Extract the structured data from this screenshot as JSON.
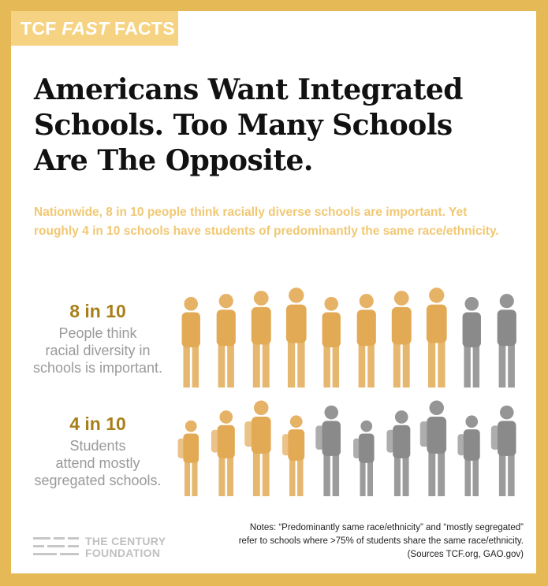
{
  "tag": {
    "prefix": "TCF",
    "emphasis": "FAST",
    "suffix": "FACTS"
  },
  "title": "Americans Want Integrated Schools. Too Many Schools Are The Opposite.",
  "subtitle": "Nationwide, 8 in 10 people think racially diverse schools are important. Yet roughly 4 in 10 schools have students of predominantly the same race/ethnicity.",
  "stats": [
    {
      "value": "8 in 10",
      "lines": [
        "People think",
        "racial diversity in",
        "schools is important."
      ],
      "fraction": 0.8,
      "highlighted": 8,
      "total": 10
    },
    {
      "value": "4 in 10",
      "lines": [
        "Students",
        "attend mostly",
        "segregated schools."
      ],
      "fraction": 0.4,
      "highlighted": 4,
      "total": 10
    }
  ],
  "colors": {
    "background": "#e5b955",
    "tag": "#f6d383",
    "subtitle": "#f1c873",
    "stat_value": "#a97f1b",
    "highlight_figure": "#e2aa55",
    "gray_figure": "#8a8a8a"
  },
  "logo": {
    "line1": "THE CENTURY",
    "line2": "FOUNDATION",
    "icon": "tcf-stripes-logo"
  },
  "notes": [
    "Notes: “Predominantly same race/ethnicity” and “mostly segregated”",
    "refer to schools where >75% of students share the same race/ethnicity.",
    "(Sources TCF.org, GAO.gov)"
  ]
}
